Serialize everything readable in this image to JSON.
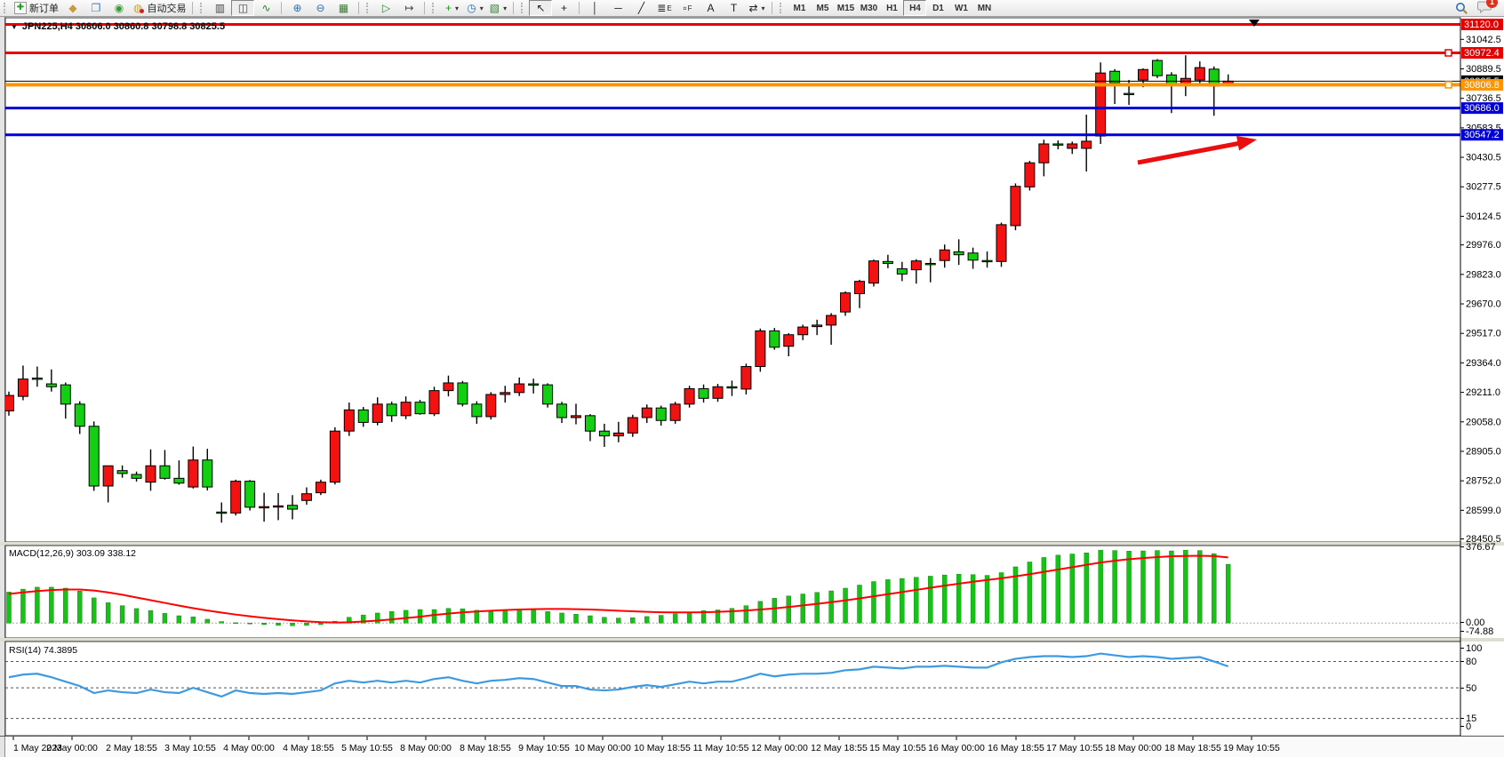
{
  "toolbar": {
    "buttons": [
      {
        "handle": true
      },
      {
        "name": "new-order-button",
        "glyph": "✚",
        "color": "#18a018",
        "label": "新订单",
        "box": true
      },
      {
        "name": "navigator-button",
        "glyph": "◆",
        "color": "#c89a3e"
      },
      {
        "name": "market-watch-button",
        "glyph": "❐",
        "color": "#4076c8"
      },
      {
        "name": "alerts-button",
        "glyph": "◉",
        "color": "#2f9e2f"
      },
      {
        "name": "autotrade-button",
        "glyph": "◍",
        "color": "#c8a24a",
        "dot": "#d42222",
        "label": "自动交易"
      },
      {
        "sep": true
      },
      {
        "handle": true
      },
      {
        "name": "bar-chart-button",
        "glyph": "▥",
        "color": "#444444"
      },
      {
        "name": "candlestick-chart-button",
        "glyph": "◫",
        "color": "#444444",
        "pressed": true
      },
      {
        "name": "line-chart-button",
        "glyph": "∿",
        "color": "#2a7d2a"
      },
      {
        "sep": true
      },
      {
        "name": "zoom-in-button",
        "glyph": "⊕",
        "color": "#2f6fb0"
      },
      {
        "name": "zoom-out-button",
        "glyph": "⊖",
        "color": "#2f6fb0"
      },
      {
        "name": "tile-windows-button",
        "glyph": "▦",
        "color": "#3a7d3a"
      },
      {
        "sep": true
      },
      {
        "handle": true
      },
      {
        "name": "auto-scroll-button",
        "glyph": "▷",
        "color": "#2a8a2a"
      },
      {
        "name": "chart-shift-button",
        "glyph": "↦",
        "color": "#444444"
      },
      {
        "sep": true
      },
      {
        "handle": true
      },
      {
        "name": "indicators-button",
        "glyph": "+",
        "color": "#18a018",
        "caret": true
      },
      {
        "name": "periods-button",
        "glyph": "◷",
        "color": "#2f6fb0",
        "caret": true
      },
      {
        "name": "templates-button",
        "glyph": "▧",
        "color": "#3a7d3a",
        "caret": true
      },
      {
        "sep": true
      },
      {
        "handle": true
      },
      {
        "name": "cursor-button",
        "glyph": "↖",
        "color": "#222222",
        "pressed": true
      },
      {
        "name": "crosshair-button",
        "glyph": "+",
        "color": "#222222"
      },
      {
        "sep": true
      },
      {
        "name": "vertical-line-button",
        "glyph": "│",
        "color": "#222222"
      },
      {
        "name": "horizontal-line-button",
        "glyph": "─",
        "color": "#222222"
      },
      {
        "name": "trendline-button",
        "glyph": "╱",
        "color": "#222222"
      },
      {
        "name": "fibonacci-button",
        "glyph": "≣",
        "color": "#222222",
        "sub": "E"
      },
      {
        "name": "fibo-fan-button",
        "glyph": "▫",
        "color": "#222222",
        "sub": "F"
      },
      {
        "name": "text-button",
        "glyph": "A",
        "color": "#222222"
      },
      {
        "name": "text-label-button",
        "glyph": "T",
        "color": "#222222"
      },
      {
        "name": "arrows-button",
        "glyph": "⇄",
        "color": "#222222",
        "caret": true
      },
      {
        "sep": true
      },
      {
        "handle": true
      }
    ],
    "timeframes": [
      "M1",
      "M5",
      "M15",
      "M30",
      "H1",
      "H4",
      "D1",
      "W1",
      "MN"
    ],
    "active_timeframe": "H4",
    "notification_count": "1"
  },
  "window": {
    "title": "JPN225,H4  30806.0 30860.8 30798.8 30825.5",
    "symbol": "JPN225",
    "period": "H4"
  },
  "chart_data": {
    "type": "candlestick",
    "title": "JPN225,H4  30806.0 30860.8 30798.8 30825.5",
    "bull_color": "#f21212",
    "bear_color": "#12cf12",
    "price_axis_ticks": [
      "31042.5",
      "30889.5",
      "30736.5",
      "30583.5",
      "30430.5",
      "30277.5",
      "30124.5",
      "29976.0",
      "29823.0",
      "29670.0",
      "29517.0",
      "29364.0",
      "29211.0",
      "29058.0",
      "28905.0",
      "28752.0",
      "28599.0",
      "28450.5"
    ],
    "levels": [
      {
        "price": 31120.0,
        "label": "31120.0",
        "color": "#e60000",
        "width": 3,
        "handle": false
      },
      {
        "price": 30972.4,
        "label": "30972.4",
        "color": "#e60000",
        "width": 3,
        "handle": true
      },
      {
        "price": 30825.5,
        "label": "30825.5",
        "color": "#000000",
        "width": 1,
        "handle": false
      },
      {
        "price": 30806.8,
        "label": "30806.8",
        "color": "#ff9300",
        "width": 4,
        "handle": true
      },
      {
        "price": 30686.0,
        "label": "30686.0",
        "color": "#0000d8",
        "width": 3,
        "handle": false
      },
      {
        "price": 30547.2,
        "label": "30547.2",
        "color": "#0000d8",
        "width": 3,
        "handle": false
      }
    ],
    "time_labels": [
      "1 May 2023",
      "2 May 00:00",
      "2 May 18:55",
      "3 May 10:55",
      "4 May 00:00",
      "4 May 18:55",
      "5 May 10:55",
      "8 May 00:00",
      "8 May 18:55",
      "9 May 10:55",
      "10 May 00:00",
      "10 May 18:55",
      "11 May 10:55",
      "12 May 00:00",
      "12 May 18:55",
      "15 May 10:55",
      "16 May 00:00",
      "16 May 18:55",
      "17 May 10:55",
      "18 May 00:00",
      "18 May 18:55",
      "19 May 10:55"
    ],
    "candles_ohlc": [
      [
        29115,
        29215,
        29090,
        29195
      ],
      [
        29190,
        29350,
        29170,
        29280
      ],
      [
        29285,
        29345,
        29240,
        29283
      ],
      [
        29255,
        29330,
        29215,
        29240
      ],
      [
        29250,
        29262,
        29075,
        29150
      ],
      [
        29150,
        29165,
        28995,
        29035
      ],
      [
        29035,
        29060,
        28700,
        28725
      ],
      [
        28725,
        28762,
        28640,
        28830
      ],
      [
        28805,
        28832,
        28768,
        28790
      ],
      [
        28785,
        28800,
        28748,
        28765
      ],
      [
        28745,
        28915,
        28700,
        28830
      ],
      [
        28830,
        28912,
        28758,
        28765
      ],
      [
        28765,
        28858,
        28732,
        28740
      ],
      [
        28720,
        28930,
        28712,
        28860
      ],
      [
        28860,
        28918,
        28702,
        28720
      ],
      [
        28590,
        28640,
        28535,
        28585
      ],
      [
        28585,
        28758,
        28572,
        28750
      ],
      [
        28750,
        28756,
        28598,
        28615
      ],
      [
        28615,
        28690,
        28540,
        28618
      ],
      [
        28620,
        28688,
        28548,
        28622
      ],
      [
        28625,
        28678,
        28552,
        28605
      ],
      [
        28650,
        28718,
        28628,
        28685
      ],
      [
        28690,
        28758,
        28678,
        28745
      ],
      [
        28745,
        29030,
        28733,
        29010
      ],
      [
        29010,
        29158,
        28985,
        29120
      ],
      [
        29120,
        29135,
        29032,
        29055
      ],
      [
        29055,
        29185,
        29040,
        29150
      ],
      [
        29150,
        29163,
        29058,
        29090
      ],
      [
        29090,
        29190,
        29072,
        29160
      ],
      [
        29160,
        29172,
        29095,
        29100
      ],
      [
        29100,
        29240,
        29088,
        29220
      ],
      [
        29220,
        29298,
        29190,
        29260
      ],
      [
        29260,
        29270,
        29138,
        29150
      ],
      [
        29150,
        29165,
        29048,
        29085
      ],
      [
        29085,
        29212,
        29070,
        29200
      ],
      [
        29200,
        29245,
        29158,
        29210
      ],
      [
        29210,
        29288,
        29192,
        29255
      ],
      [
        29255,
        29282,
        29205,
        29250
      ],
      [
        29250,
        29258,
        29132,
        29150
      ],
      [
        29150,
        29162,
        29052,
        29080
      ],
      [
        29080,
        29152,
        29045,
        29090
      ],
      [
        29090,
        29098,
        28958,
        29010
      ],
      [
        29010,
        29048,
        28928,
        28985
      ],
      [
        28985,
        29058,
        28952,
        29000
      ],
      [
        29000,
        29095,
        28980,
        29080
      ],
      [
        29080,
        29148,
        29052,
        29130
      ],
      [
        29130,
        29142,
        29038,
        29065
      ],
      [
        29065,
        29162,
        29048,
        29150
      ],
      [
        29150,
        29245,
        29132,
        29230
      ],
      [
        29230,
        29252,
        29158,
        29180
      ],
      [
        29180,
        29255,
        29162,
        29240
      ],
      [
        29240,
        29272,
        29192,
        29235
      ],
      [
        29228,
        29360,
        29200,
        29345
      ],
      [
        29345,
        29542,
        29318,
        29530
      ],
      [
        29530,
        29545,
        29432,
        29445
      ],
      [
        29450,
        29518,
        29398,
        29510
      ],
      [
        29510,
        29562,
        29482,
        29550
      ],
      [
        29552,
        29588,
        29508,
        29560
      ],
      [
        29560,
        29622,
        29458,
        29610
      ],
      [
        29628,
        29735,
        29608,
        29727
      ],
      [
        29723,
        29795,
        29648,
        29787
      ],
      [
        29778,
        29900,
        29760,
        29893
      ],
      [
        29890,
        29925,
        29855,
        29880
      ],
      [
        29852,
        29888,
        29788,
        29825
      ],
      [
        29847,
        29902,
        29775,
        29893
      ],
      [
        29880,
        29908,
        29782,
        29878
      ],
      [
        29895,
        29978,
        29858,
        29950
      ],
      [
        29940,
        30005,
        29872,
        29925
      ],
      [
        29934,
        29962,
        29852,
        29897
      ],
      [
        29895,
        29942,
        29858,
        29890
      ],
      [
        29890,
        30092,
        29862,
        30081
      ],
      [
        30076,
        30295,
        30052,
        30280
      ],
      [
        30277,
        30412,
        30258,
        30402
      ],
      [
        30402,
        30522,
        30332,
        30500
      ],
      [
        30500,
        30518,
        30472,
        30498
      ],
      [
        30477,
        30512,
        30448,
        30500
      ],
      [
        30477,
        30652,
        30357,
        30514
      ],
      [
        30541,
        30923,
        30500,
        30868
      ],
      [
        30877,
        30888,
        30707,
        30817
      ],
      [
        30762,
        30832,
        30702,
        30760
      ],
      [
        30831,
        30892,
        30794,
        30886
      ],
      [
        30933,
        30940,
        30842,
        30854
      ],
      [
        30858,
        30872,
        30660,
        30807
      ],
      [
        30803,
        30960,
        30748,
        30840
      ],
      [
        30831,
        30928,
        30812,
        30896
      ],
      [
        30888,
        30902,
        30646,
        30800
      ],
      [
        30806.0,
        30860.8,
        30798.8,
        30825.5
      ]
    ],
    "indicators": {
      "macd": {
        "label": "MACD(12,26,9) 303.09 338.12",
        "axis_ticks": [
          "376.67",
          "0.00",
          "-74.88"
        ],
        "hist_color": "#16c216",
        "signal_color": "#ff0000",
        "histogram": [
          160,
          175,
          185,
          185,
          180,
          165,
          130,
          105,
          90,
          75,
          65,
          50,
          38,
          32,
          20,
          8,
          2,
          -4,
          -8,
          -12,
          -14,
          -12,
          -8,
          10,
          30,
          42,
          52,
          60,
          66,
          70,
          70,
          76,
          74,
          66,
          62,
          64,
          66,
          66,
          60,
          52,
          46,
          38,
          30,
          26,
          28,
          34,
          40,
          48,
          56,
          64,
          68,
          76,
          90,
          112,
          128,
          140,
          150,
          158,
          166,
          180,
          196,
          214,
          224,
          230,
          236,
          242,
          248,
          252,
          250,
          246,
          260,
          290,
          315,
          338,
          350,
          356,
          362,
          376,
          374,
          371,
          372,
          374,
          372,
          376,
          374,
          358,
          303.09
        ],
        "signal": [
          150,
          158,
          165,
          170,
          173,
          173,
          168,
          158,
          146,
          132,
          118,
          104,
          90,
          77,
          65,
          54,
          44,
          35,
          27,
          20,
          14,
          9,
          5,
          3,
          4,
          8,
          13,
          19,
          26,
          33,
          42,
          49,
          55,
          60,
          64,
          67,
          70,
          72,
          73,
          73,
          72,
          70,
          67,
          64,
          61,
          58,
          56,
          55,
          55,
          56,
          58,
          61,
          65,
          70,
          76,
          83,
          91,
          99,
          108,
          117,
          127,
          138,
          149,
          160,
          171,
          182,
          193,
          203,
          213,
          222,
          231,
          241,
          252,
          264,
          276,
          288,
          300,
          312,
          321,
          329,
          335,
          340,
          344,
          346,
          347,
          345,
          338.12
        ]
      },
      "rsi": {
        "label": "RSI(14) 74.3895",
        "axis_ticks": [
          "100",
          "80",
          "50",
          "15",
          "0"
        ],
        "dashed_levels": [
          80,
          50,
          15
        ],
        "line_color": "#3d9ae1",
        "values": [
          62,
          65,
          66,
          62,
          57,
          52,
          44,
          47,
          45,
          44,
          48,
          45,
          44,
          50,
          45,
          40,
          47,
          44,
          43,
          44,
          43,
          45,
          47,
          55,
          58,
          56,
          58,
          56,
          58,
          56,
          60,
          62,
          58,
          55,
          58,
          59,
          61,
          60,
          56,
          52,
          52,
          48,
          47,
          48,
          51,
          53,
          51,
          54,
          57,
          55,
          57,
          57,
          61,
          66,
          63,
          65,
          66,
          66,
          67,
          70,
          71,
          74,
          73,
          72,
          74,
          74,
          75,
          74,
          73,
          73,
          79,
          83,
          85,
          86,
          86,
          85,
          86,
          89,
          87,
          85,
          86,
          85,
          83,
          84,
          85,
          80,
          74.39
        ]
      }
    },
    "annotation": {
      "type": "arrow",
      "color": "#ea0e0e",
      "points_to": "30547.2 support line"
    }
  }
}
